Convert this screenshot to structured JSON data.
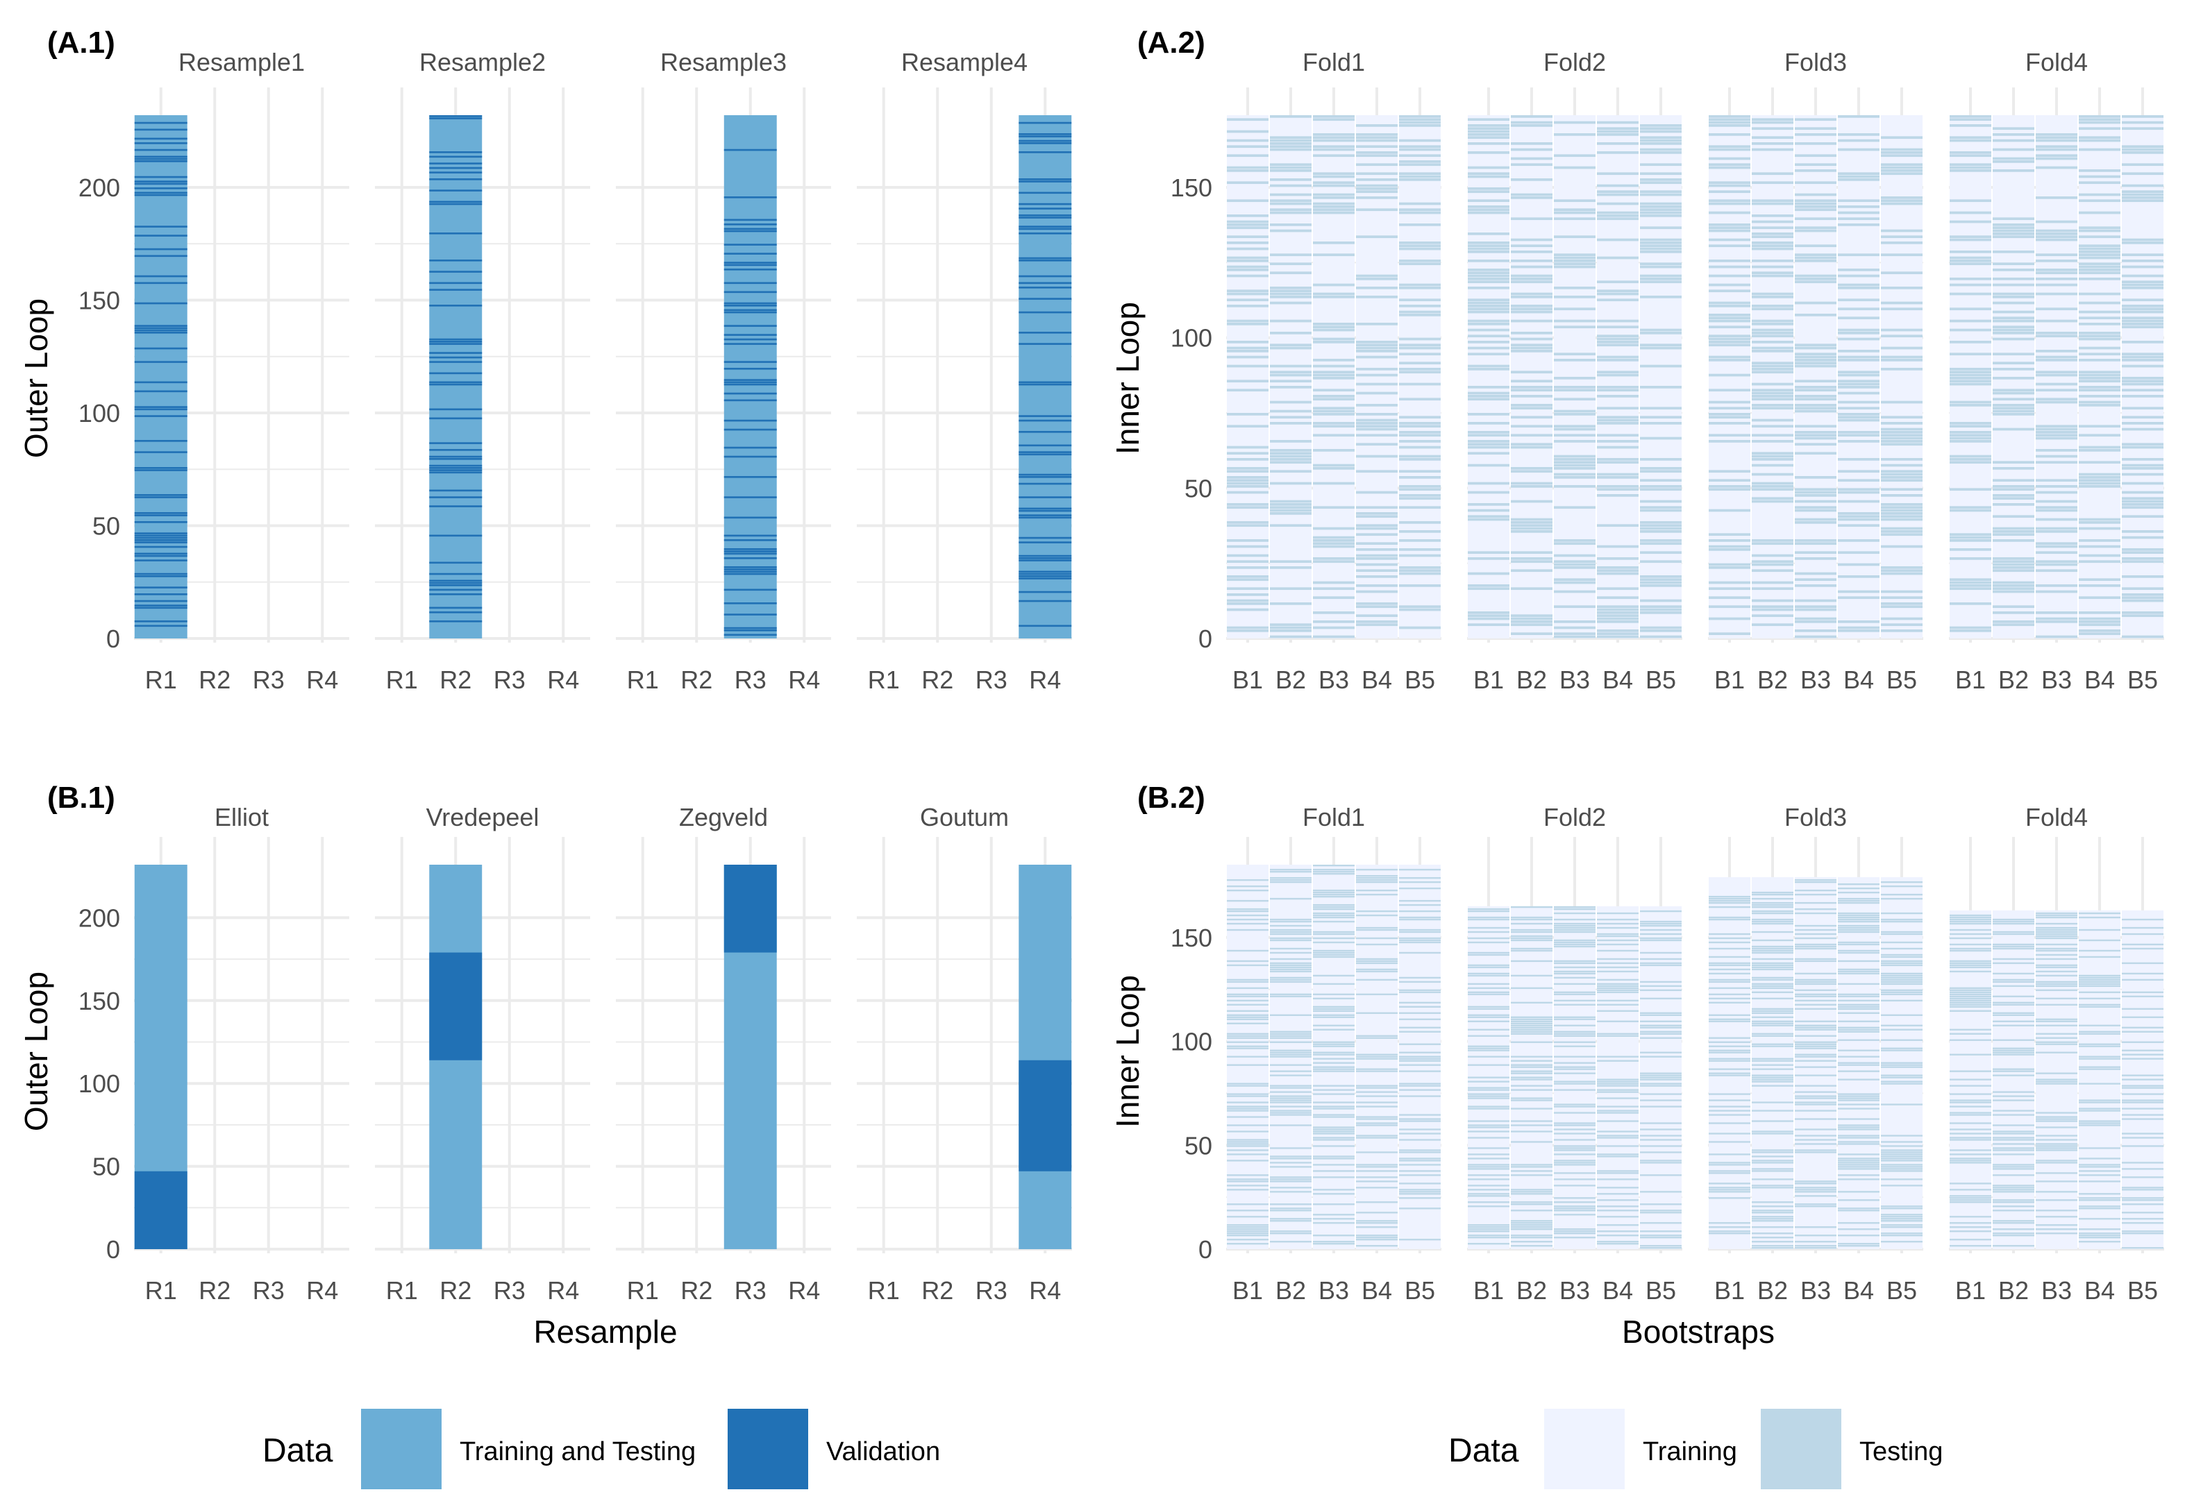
{
  "chart_data": [
    {
      "panel": "A.1",
      "type": "heatmap",
      "label": "(A.1)",
      "facets": [
        "Resample1",
        "Resample2",
        "Resample3",
        "Resample4"
      ],
      "x_categories": [
        "R1",
        "R2",
        "R3",
        "R4"
      ],
      "ylabel": "Outer Loop",
      "y_ticks": [
        "0",
        "50",
        "100",
        "150",
        "200"
      ],
      "ylim": [
        0,
        232
      ],
      "description_data": "Each facet k has a single filled column at R_k; rows are outer-loop observations colored by Training and Testing vs Validation (interleaved, ~25% validation)",
      "validation_fraction": 0.25
    },
    {
      "panel": "A.2",
      "type": "heatmap",
      "label": "(A.2)",
      "facets": [
        "Fold1",
        "Fold2",
        "Fold3",
        "Fold4"
      ],
      "x_categories": [
        "B1",
        "B2",
        "B3",
        "B4",
        "B5"
      ],
      "ylabel": "Inner Loop",
      "y_ticks": [
        "0",
        "50",
        "100",
        "150"
      ],
      "ylim": [
        0,
        174
      ],
      "testing_fraction": 0.37
    },
    {
      "panel": "B.1",
      "type": "heatmap",
      "label": "(B.1)",
      "facets": [
        "Elliot",
        "Vredepeel",
        "Zegveld",
        "Goutum"
      ],
      "x_categories": [
        "R1",
        "R2",
        "R3",
        "R4"
      ],
      "xlabel": "Resample",
      "ylabel": "Outer Loop",
      "y_ticks": [
        "0",
        "50",
        "100",
        "150",
        "200"
      ],
      "ylim": [
        0,
        232
      ],
      "validation_blocks": [
        [
          0,
          47
        ],
        [
          114,
          179
        ],
        [
          179,
          232
        ],
        [
          47,
          114
        ]
      ]
    },
    {
      "panel": "B.2",
      "type": "heatmap",
      "label": "(B.2)",
      "facets": [
        "Fold1",
        "Fold2",
        "Fold3",
        "Fold4"
      ],
      "x_categories": [
        "B1",
        "B2",
        "B3",
        "B4",
        "B5"
      ],
      "xlabel": "Bootstraps",
      "ylabel": "Inner Loop",
      "y_ticks": [
        "0",
        "50",
        "100",
        "150"
      ],
      "ylim": [
        0,
        185
      ],
      "facet_heights": [
        185,
        165,
        179,
        163
      ],
      "testing_fraction": 0.37
    }
  ],
  "legends": [
    {
      "title": "Data",
      "items": [
        {
          "label": "Training and Testing",
          "color": "#6baed6"
        },
        {
          "label": "Validation",
          "color": "#2171b5"
        }
      ]
    },
    {
      "title": "Data",
      "items": [
        {
          "label": "Training",
          "color": "#eff3ff"
        },
        {
          "label": "Testing",
          "color": "#bdd7e7"
        }
      ]
    }
  ],
  "colors": {
    "training_testing": "#6baed6",
    "validation": "#2171b5",
    "training": "#eff3ff",
    "testing": "#bdd7e7",
    "grid": "#ebebeb",
    "text": "#4d4d4d"
  }
}
